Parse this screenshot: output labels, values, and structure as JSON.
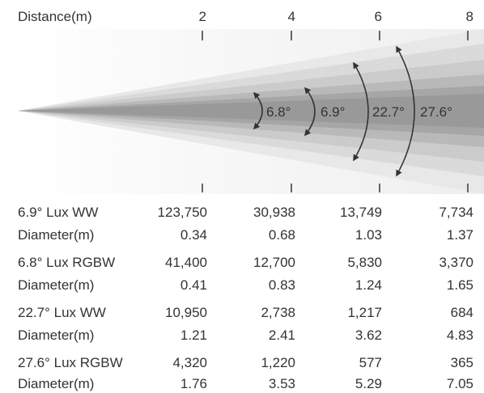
{
  "header": {
    "distance_label": "Distance(m)",
    "ticks": [
      "2",
      "4",
      "6",
      "8"
    ]
  },
  "beam_angles": [
    "6.8°",
    "6.9°",
    "22.7°",
    "27.6°"
  ],
  "colors": {
    "text": "#333333",
    "tick": "#555555",
    "arrow": "#333333",
    "beam_outer": "#e6e6e6",
    "beam_inner": "#989898"
  },
  "table": {
    "rows": [
      {
        "label": "6.9° Lux WW",
        "values": [
          "123,750",
          "30,938",
          "13,749",
          "7,734"
        ]
      },
      {
        "label": "Diameter(m)",
        "values": [
          "0.34",
          "0.68",
          "1.03",
          "1.37"
        ]
      },
      {
        "label": "6.8° Lux RGBW",
        "values": [
          "41,400",
          "12,700",
          "5,830",
          "3,370"
        ]
      },
      {
        "label": "Diameter(m)",
        "values": [
          "0.41",
          "0.83",
          "1.24",
          "1.65"
        ]
      },
      {
        "label": "22.7° Lux WW",
        "values": [
          "10,950",
          "2,738",
          "1,217",
          "684"
        ]
      },
      {
        "label": "Diameter(m)",
        "values": [
          "1.21",
          "2.41",
          "3.62",
          "4.83"
        ]
      },
      {
        "label": "27.6° Lux RGBW",
        "values": [
          "4,320",
          "1,220",
          "577",
          "365"
        ]
      },
      {
        "label": "Diameter(m)",
        "values": [
          "1.76",
          "3.53",
          "5.29",
          "7.05"
        ]
      }
    ]
  }
}
